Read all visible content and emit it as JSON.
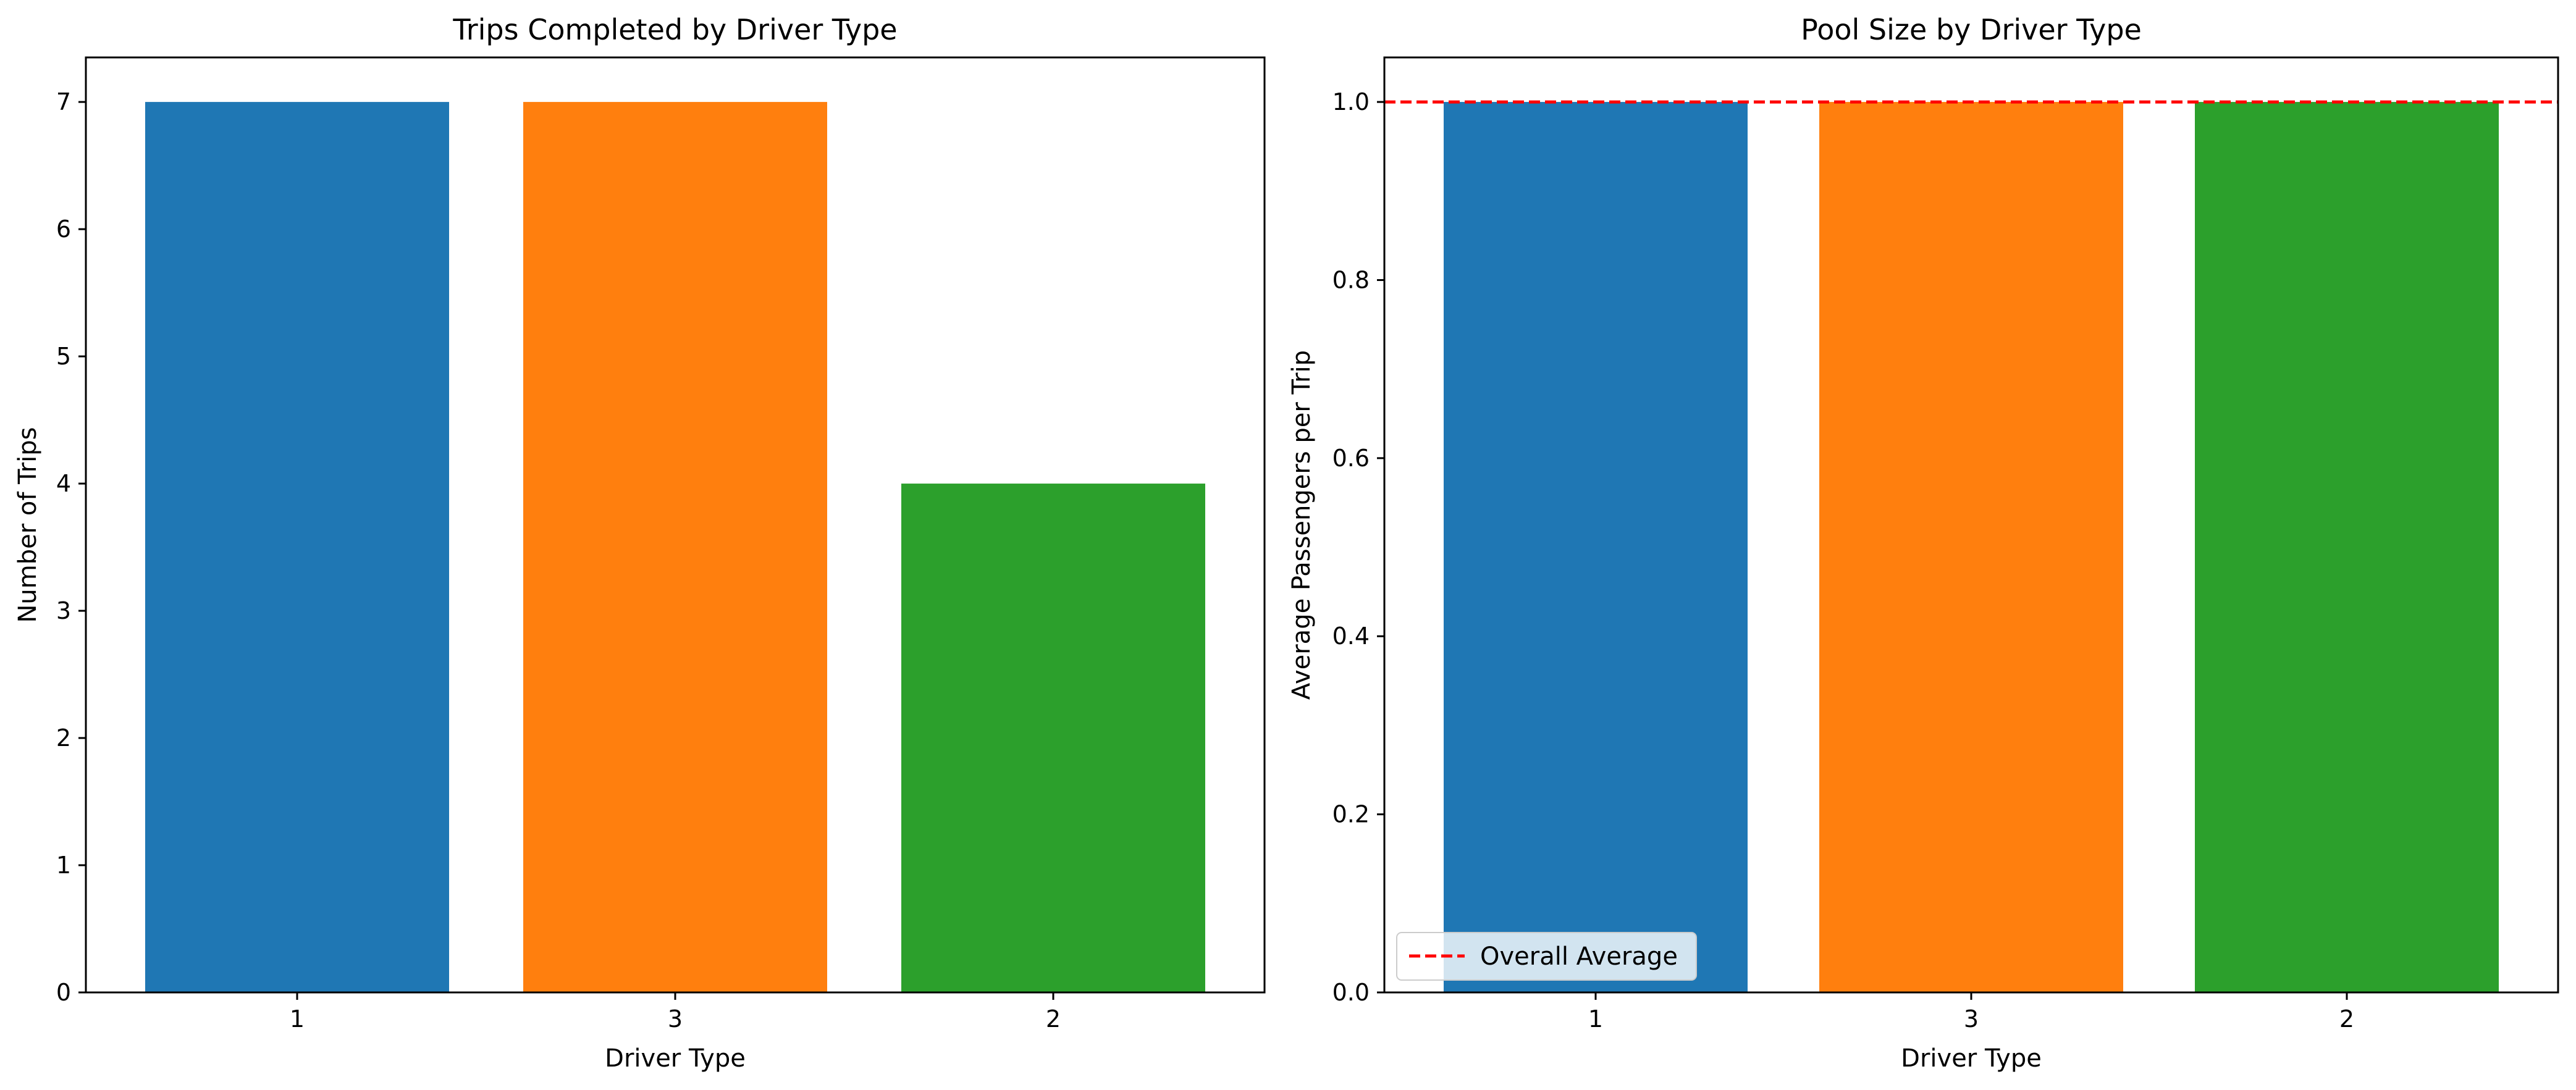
{
  "chart_data": [
    {
      "type": "bar",
      "title": "Trips Completed by Driver Type",
      "xlabel": "Driver Type",
      "ylabel": "Number of Trips",
      "categories": [
        "1",
        "3",
        "2"
      ],
      "values": [
        7,
        7,
        4
      ],
      "colors": [
        "#1f77b4",
        "#ff7f0e",
        "#2ca02c"
      ],
      "ylim": [
        0,
        7.35
      ],
      "yticks": [
        0,
        1,
        2,
        3,
        4,
        5,
        6,
        7
      ],
      "ytick_labels": [
        "0",
        "1",
        "2",
        "3",
        "4",
        "5",
        "6",
        "7"
      ],
      "grid": false
    },
    {
      "type": "bar",
      "title": "Pool Size by Driver Type",
      "xlabel": "Driver Type",
      "ylabel": "Average Passengers per Trip",
      "categories": [
        "1",
        "3",
        "2"
      ],
      "values": [
        1.0,
        1.0,
        1.0
      ],
      "colors": [
        "#1f77b4",
        "#ff7f0e",
        "#2ca02c"
      ],
      "ylim": [
        0,
        1.05
      ],
      "yticks": [
        0,
        0.2,
        0.4,
        0.6,
        0.8,
        1.0
      ],
      "ytick_labels": [
        "0.0",
        "0.2",
        "0.4",
        "0.6",
        "0.8",
        "1.0"
      ],
      "grid": false,
      "reference_line": {
        "name": "Overall Average",
        "value": 1.0,
        "color": "#ff0000",
        "style": "dashed"
      },
      "legend": {
        "placement": "lower-left",
        "entries": [
          "Overall Average"
        ]
      }
    }
  ]
}
